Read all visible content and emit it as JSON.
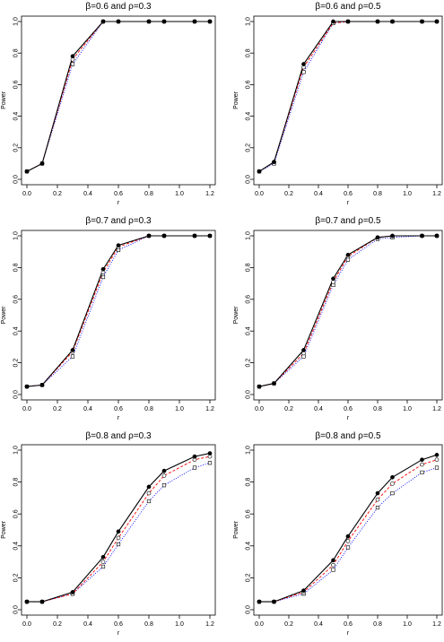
{
  "chart_data": [
    {
      "type": "line",
      "title": "β=0.6 and ρ=0.3",
      "xlabel": "r",
      "ylabel": "Power",
      "xlim": [
        0,
        1.2
      ],
      "ylim": [
        0,
        1.0
      ],
      "x_ticks": [
        "0.0",
        "0.2",
        "0.4",
        "0.6",
        "0.8",
        "1.0",
        "1.2"
      ],
      "y_ticks": [
        "0.0",
        "0.2",
        "0.4",
        "0.6",
        "0.8",
        "1.0"
      ],
      "x": [
        0.0,
        0.1,
        0.3,
        0.5,
        0.6,
        0.8,
        0.9,
        1.1,
        1.2
      ],
      "series": [
        {
          "style": "solid-filled-circle",
          "color": "#000000",
          "values": [
            0.05,
            0.1,
            0.78,
            1.0,
            1.0,
            1.0,
            1.0,
            1.0,
            1.0
          ]
        },
        {
          "style": "dashed-open-circle",
          "color": "#ff0000",
          "values": [
            0.05,
            0.1,
            0.76,
            1.0,
            1.0,
            1.0,
            1.0,
            1.0,
            1.0
          ]
        },
        {
          "style": "dotted-open-square",
          "color": "#0000ff",
          "values": [
            0.05,
            0.1,
            0.73,
            1.0,
            1.0,
            1.0,
            1.0,
            1.0,
            1.0
          ]
        }
      ]
    },
    {
      "type": "line",
      "title": "β=0.6 and ρ=0.5",
      "xlabel": "r",
      "ylabel": "Power",
      "xlim": [
        0,
        1.2
      ],
      "ylim": [
        0,
        1.0
      ],
      "x_ticks": [
        "0.0",
        "0.2",
        "0.4",
        "0.6",
        "0.8",
        "1.0",
        "1.2"
      ],
      "y_ticks": [
        "0.0",
        "0.2",
        "0.4",
        "0.6",
        "0.8",
        "1.0"
      ],
      "x": [
        0.0,
        0.1,
        0.3,
        0.5,
        0.6,
        0.8,
        0.9,
        1.1,
        1.2
      ],
      "series": [
        {
          "style": "solid-filled-circle",
          "color": "#000000",
          "values": [
            0.05,
            0.11,
            0.73,
            1.0,
            1.0,
            1.0,
            1.0,
            1.0,
            1.0
          ]
        },
        {
          "style": "dashed-open-circle",
          "color": "#ff0000",
          "values": [
            0.05,
            0.11,
            0.71,
            0.99,
            1.0,
            1.0,
            1.0,
            1.0,
            1.0
          ]
        },
        {
          "style": "dotted-open-square",
          "color": "#0000ff",
          "values": [
            0.05,
            0.1,
            0.68,
            0.99,
            1.0,
            1.0,
            1.0,
            1.0,
            1.0
          ]
        }
      ]
    },
    {
      "type": "line",
      "title": "β=0.7 and ρ=0.3",
      "xlabel": "r",
      "ylabel": "Power",
      "xlim": [
        0,
        1.2
      ],
      "ylim": [
        0,
        1.0
      ],
      "x_ticks": [
        "0.0",
        "0.2",
        "0.4",
        "0.6",
        "0.8",
        "1.0",
        "1.2"
      ],
      "y_ticks": [
        "0.0",
        "0.2",
        "0.4",
        "0.6",
        "0.8",
        "1.0"
      ],
      "x": [
        0.0,
        0.1,
        0.3,
        0.5,
        0.6,
        0.8,
        0.9,
        1.1,
        1.2
      ],
      "series": [
        {
          "style": "solid-filled-circle",
          "color": "#000000",
          "values": [
            0.05,
            0.06,
            0.28,
            0.79,
            0.94,
            1.0,
            1.0,
            1.0,
            1.0
          ]
        },
        {
          "style": "dashed-open-circle",
          "color": "#ff0000",
          "values": [
            0.05,
            0.06,
            0.27,
            0.77,
            0.93,
            1.0,
            1.0,
            1.0,
            1.0
          ]
        },
        {
          "style": "dotted-open-square",
          "color": "#0000ff",
          "values": [
            0.05,
            0.06,
            0.24,
            0.74,
            0.91,
            1.0,
            1.0,
            1.0,
            1.0
          ]
        }
      ]
    },
    {
      "type": "line",
      "title": "β=0.7 and ρ=0.5",
      "xlabel": "r",
      "ylabel": "Power",
      "xlim": [
        0,
        1.2
      ],
      "ylim": [
        0,
        1.0
      ],
      "x_ticks": [
        "0.0",
        "0.2",
        "0.4",
        "0.6",
        "0.8",
        "1.0",
        "1.2"
      ],
      "y_ticks": [
        "0.0",
        "0.2",
        "0.4",
        "0.6",
        "0.8",
        "1.0"
      ],
      "x": [
        0.0,
        0.1,
        0.3,
        0.5,
        0.6,
        0.8,
        0.9,
        1.1,
        1.2
      ],
      "series": [
        {
          "style": "solid-filled-circle",
          "color": "#000000",
          "values": [
            0.05,
            0.07,
            0.28,
            0.73,
            0.88,
            0.99,
            1.0,
            1.0,
            1.0
          ]
        },
        {
          "style": "dashed-open-circle",
          "color": "#ff0000",
          "values": [
            0.05,
            0.07,
            0.26,
            0.71,
            0.87,
            0.99,
            1.0,
            1.0,
            1.0
          ]
        },
        {
          "style": "dotted-open-square",
          "color": "#0000ff",
          "values": [
            0.05,
            0.07,
            0.24,
            0.69,
            0.85,
            0.98,
            0.99,
            1.0,
            1.0
          ]
        }
      ]
    },
    {
      "type": "line",
      "title": "β=0.8 and ρ=0.3",
      "xlabel": "r",
      "ylabel": "Power",
      "xlim": [
        0,
        1.2
      ],
      "ylim": [
        0,
        1.0
      ],
      "x_ticks": [
        "0.0",
        "0.2",
        "0.4",
        "0.6",
        "0.8",
        "1.0",
        "1.2"
      ],
      "y_ticks": [
        "0.0",
        "0.2",
        "0.4",
        "0.6",
        "0.8",
        "1.0"
      ],
      "x": [
        0.0,
        0.1,
        0.3,
        0.5,
        0.6,
        0.8,
        0.9,
        1.1,
        1.2
      ],
      "series": [
        {
          "style": "solid-filled-circle",
          "color": "#000000",
          "values": [
            0.05,
            0.05,
            0.11,
            0.33,
            0.49,
            0.77,
            0.87,
            0.96,
            0.98
          ]
        },
        {
          "style": "dashed-open-circle",
          "color": "#ff0000",
          "values": [
            0.05,
            0.05,
            0.1,
            0.3,
            0.45,
            0.73,
            0.84,
            0.94,
            0.96
          ]
        },
        {
          "style": "dotted-open-square",
          "color": "#0000ff",
          "values": [
            0.05,
            0.05,
            0.1,
            0.27,
            0.41,
            0.68,
            0.78,
            0.89,
            0.92
          ]
        }
      ]
    },
    {
      "type": "line",
      "title": "β=0.8 and ρ=0.5",
      "xlabel": "r",
      "ylabel": "Power",
      "xlim": [
        0,
        1.2
      ],
      "ylim": [
        0,
        1.0
      ],
      "x_ticks": [
        "0.0",
        "0.2",
        "0.4",
        "0.6",
        "0.8",
        "1.0",
        "1.2"
      ],
      "y_ticks": [
        "0.0",
        "0.2",
        "0.4",
        "0.6",
        "0.8",
        "1.0"
      ],
      "x": [
        0.0,
        0.1,
        0.3,
        0.5,
        0.6,
        0.8,
        0.9,
        1.1,
        1.2
      ],
      "series": [
        {
          "style": "solid-filled-circle",
          "color": "#000000",
          "values": [
            0.05,
            0.05,
            0.12,
            0.31,
            0.46,
            0.73,
            0.83,
            0.94,
            0.97
          ]
        },
        {
          "style": "dashed-open-circle",
          "color": "#ff0000",
          "values": [
            0.05,
            0.05,
            0.11,
            0.28,
            0.43,
            0.69,
            0.79,
            0.91,
            0.94
          ]
        },
        {
          "style": "dotted-open-square",
          "color": "#0000ff",
          "values": [
            0.05,
            0.05,
            0.1,
            0.25,
            0.39,
            0.64,
            0.73,
            0.86,
            0.89
          ]
        }
      ]
    }
  ]
}
